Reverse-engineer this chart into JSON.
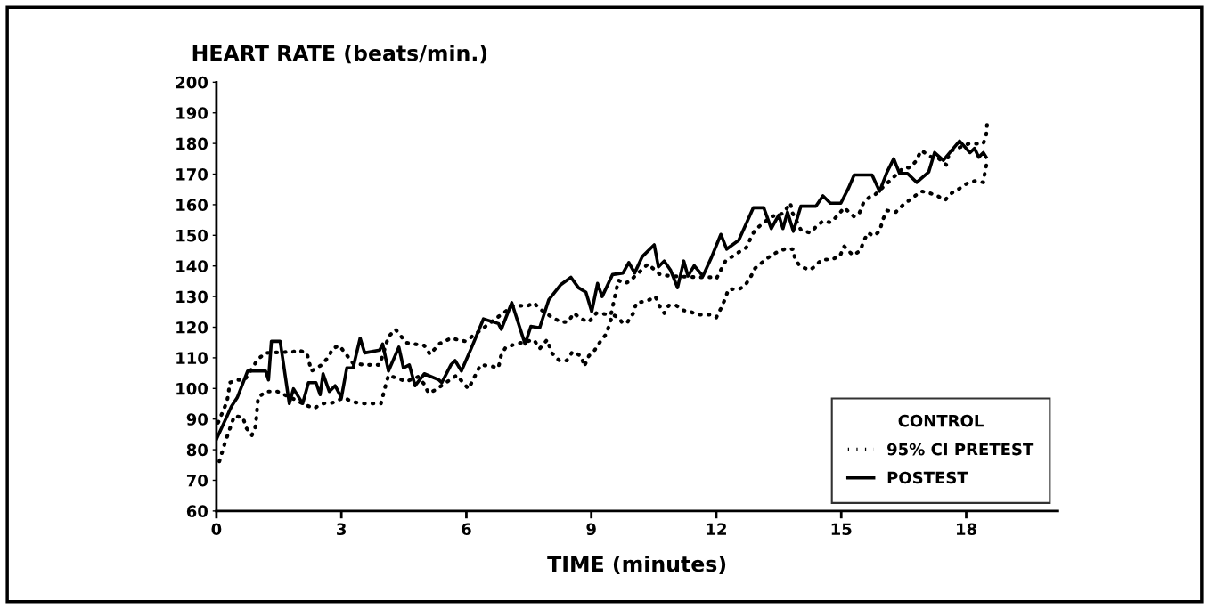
{
  "chart_data": {
    "type": "line",
    "ylabel": "HEART RATE (beats/min.)",
    "xlabel": "TIME (minutes)",
    "legend_title": "CONTROL",
    "legend": "bottom right",
    "xlim": [
      0,
      20.2
    ],
    "xticks": [
      0,
      3,
      6,
      9,
      12,
      15,
      18
    ],
    "ylim": [
      60,
      200
    ],
    "yticks": [
      60,
      70,
      80,
      90,
      100,
      110,
      120,
      130,
      140,
      150,
      160,
      170,
      180,
      190,
      200
    ],
    "grid": false,
    "series": [
      {
        "name": "95% CI PRETEST",
        "color": "#000000",
        "line_style": "dotted",
        "x": [
          0.04,
          0.25,
          0.29,
          0.32,
          0.5,
          0.68,
          1.0,
          1.18,
          1.85,
          1.96,
          2.17,
          2.28,
          2.53,
          2.71,
          2.78,
          2.95,
          3.28,
          3.56,
          3.92,
          4.13,
          4.3,
          4.56,
          4.99,
          5.13,
          5.34,
          5.63,
          5.98,
          6.27,
          6.55,
          7.12,
          7.48,
          7.62,
          7.76,
          8.01,
          8.26,
          8.44,
          8.58,
          8.76,
          8.94,
          9.12,
          9.47,
          9.65,
          9.79,
          9.9,
          10.36,
          10.65,
          10.9,
          11.57,
          11.89,
          12.0,
          12.22,
          12.54,
          12.72,
          12.82,
          12.93,
          13.32,
          13.6,
          13.78,
          13.82,
          14.03,
          14.25,
          14.39,
          14.56,
          14.74,
          14.89,
          15.07,
          15.31,
          15.43,
          15.53,
          15.67,
          15.78,
          16.5,
          16.64,
          16.78,
          16.92,
          17.17,
          17.35,
          17.52,
          17.6,
          17.88,
          18.06,
          18.27,
          18.41,
          18.48,
          18.5
        ],
        "values": [
          88.8,
          95.6,
          98.5,
          101.9,
          102.8,
          102.8,
          109.6,
          111.6,
          112,
          112.5,
          111.6,
          105.7,
          107.7,
          110.6,
          113,
          114,
          108.2,
          107.7,
          107.7,
          116.9,
          119.3,
          114.9,
          114,
          111.1,
          114.5,
          116.4,
          115.4,
          118.3,
          121.2,
          127,
          127,
          128,
          126,
          123.7,
          121.7,
          121.7,
          124.6,
          122.7,
          121.7,
          124.6,
          124.1,
          135.3,
          134.3,
          134.8,
          140.6,
          137.2,
          136.7,
          136.3,
          136.3,
          135.8,
          141.6,
          144.5,
          146,
          148.9,
          151.8,
          156.1,
          157.1,
          160.5,
          157.6,
          151.8,
          150.8,
          152.7,
          154.7,
          154.2,
          156.1,
          159,
          156.1,
          157.1,
          160.5,
          162.4,
          162.9,
          172.1,
          172.1,
          174,
          177.7,
          175.5,
          175,
          173,
          177.4,
          178.9,
          179.9,
          179.9,
          179.9,
          182.8,
          186.2
        ]
      },
      {
        "color": "#000000",
        "line_style": "dotted",
        "x": [
          0.07,
          0.21,
          0.43,
          0.64,
          0.71,
          0.85,
          0.93,
          0.96,
          1.0,
          1.18,
          1.46,
          1.85,
          2.14,
          2.35,
          2.5,
          2.64,
          2.78,
          3.06,
          3.28,
          3.49,
          3.7,
          3.95,
          4.06,
          4.13,
          4.56,
          4.84,
          4.99,
          5.09,
          5.24,
          5.77,
          6.05,
          6.16,
          6.34,
          6.62,
          6.77,
          6.84,
          6.95,
          7.19,
          7.62,
          7.76,
          7.94,
          8.05,
          8.23,
          8.41,
          8.55,
          8.76,
          8.83,
          8.94,
          9.08,
          9.22,
          9.36,
          9.44,
          9.51,
          9.65,
          9.76,
          9.87,
          10.01,
          10.08,
          10.33,
          10.54,
          10.61,
          10.75,
          10.86,
          11.04,
          11.18,
          11.36,
          11.57,
          11.86,
          12.0,
          12.11,
          12.22,
          12.29,
          12.54,
          12.68,
          12.82,
          12.93,
          13.14,
          13.32,
          13.46,
          13.64,
          13.85,
          13.89,
          14.03,
          14.25,
          14.39,
          14.53,
          14.74,
          14.96,
          15.07,
          15.28,
          15.46,
          15.53,
          15.64,
          15.78,
          15.92,
          16.0,
          16.1,
          16.31,
          16.49,
          16.92,
          17.1,
          17.31,
          17.49,
          17.66,
          17.84,
          18.06,
          18.23,
          18.41,
          18.45,
          18.5
        ],
        "values": [
          76.2,
          82.5,
          91,
          90.5,
          87.2,
          84.7,
          87.2,
          90.5,
          97,
          99,
          99,
          96.6,
          94.6,
          93.5,
          94.8,
          95.3,
          95.3,
          97,
          95.6,
          95.1,
          95.1,
          95.1,
          100.9,
          104.3,
          102.3,
          103.8,
          101.4,
          98.5,
          99.4,
          104.3,
          99.9,
          102.8,
          107.7,
          107.2,
          106.7,
          111.1,
          113.5,
          114.5,
          115.9,
          113,
          115.9,
          111.6,
          109.1,
          109.1,
          112,
          110.6,
          107.2,
          110.6,
          112.5,
          115.4,
          117.8,
          121.2,
          124.1,
          123.2,
          121.2,
          121.7,
          124.6,
          128,
          128.5,
          130,
          127.5,
          124.6,
          127.1,
          127.1,
          125.6,
          125.1,
          124.1,
          124.1,
          123.2,
          126.1,
          129.5,
          132.4,
          132.4,
          133.4,
          136.3,
          139.2,
          141.6,
          143.5,
          144.5,
          145.5,
          145.5,
          142.1,
          139.7,
          138.7,
          140.1,
          142.1,
          142.1,
          143,
          146.4,
          143.5,
          145,
          147.9,
          150.8,
          149.8,
          151.3,
          155.2,
          158.1,
          157.6,
          160,
          164.4,
          163.9,
          162.9,
          161.5,
          163.9,
          165.3,
          167.3,
          167.8,
          167.3,
          170.7,
          174
        ]
      },
      {
        "name": "POSTEST",
        "color": "#000000",
        "line_style": "solid",
        "x": [
          0,
          0.36,
          0.5,
          0.75,
          1.18,
          1.25,
          1.32,
          1.53,
          1.75,
          1.85,
          2.07,
          2.21,
          2.39,
          2.49,
          2.56,
          2.71,
          2.85,
          3.0,
          3.13,
          3.28,
          3.45,
          3.56,
          3.92,
          3.99,
          4.13,
          4.38,
          4.49,
          4.63,
          4.77,
          4.99,
          5.34,
          5.41,
          5.63,
          5.73,
          5.88,
          6.13,
          6.41,
          6.77,
          6.84,
          7.09,
          7.41,
          7.55,
          7.76,
          7.98,
          8.26,
          8.51,
          8.69,
          8.87,
          9.01,
          9.15,
          9.26,
          9.51,
          9.76,
          9.9,
          10.04,
          10.22,
          10.51,
          10.61,
          10.75,
          10.9,
          11.07,
          11.22,
          11.32,
          11.47,
          11.68,
          11.89,
          12.11,
          12.25,
          12.54,
          12.89,
          13.14,
          13.32,
          13.5,
          13.6,
          13.71,
          13.85,
          14.03,
          14.39,
          14.56,
          14.74,
          14.99,
          15.17,
          15.31,
          15.74,
          15.92,
          16.1,
          16.26,
          16.4,
          16.59,
          16.81,
          17.1,
          17.24,
          17.45,
          17.66,
          17.84,
          18.09,
          18.2,
          18.3,
          18.41,
          18.48
        ],
        "values": [
          83.4,
          94.1,
          97,
          105.7,
          105.7,
          102.8,
          115.4,
          115.4,
          95.1,
          99.9,
          95.1,
          101.9,
          101.9,
          98,
          104.8,
          99,
          100.9,
          97,
          106.7,
          106.7,
          116.4,
          111.6,
          112.5,
          114.5,
          105.7,
          113.5,
          106.7,
          107.7,
          100.9,
          104.8,
          102.8,
          101.9,
          107.7,
          109.1,
          105.7,
          113.5,
          122.7,
          121.2,
          119.3,
          128,
          114.5,
          120.3,
          119.8,
          129,
          133.8,
          136.3,
          132.9,
          131.4,
          125.1,
          134.3,
          130,
          137.2,
          137.7,
          141.1,
          137.7,
          143,
          146.9,
          139.7,
          141.6,
          138.7,
          132.9,
          141.6,
          136.7,
          140.1,
          136.7,
          143,
          150.3,
          145.5,
          148.4,
          159,
          159,
          152.2,
          156.6,
          152.2,
          157.6,
          151.3,
          159.5,
          159.5,
          162.9,
          160.5,
          160.5,
          165.3,
          169.7,
          169.7,
          164.4,
          170.7,
          175,
          170.2,
          170.2,
          167.3,
          170.7,
          177,
          174.5,
          177.9,
          180.8,
          177,
          178.4,
          175.5,
          177,
          175.5
        ]
      }
    ]
  }
}
